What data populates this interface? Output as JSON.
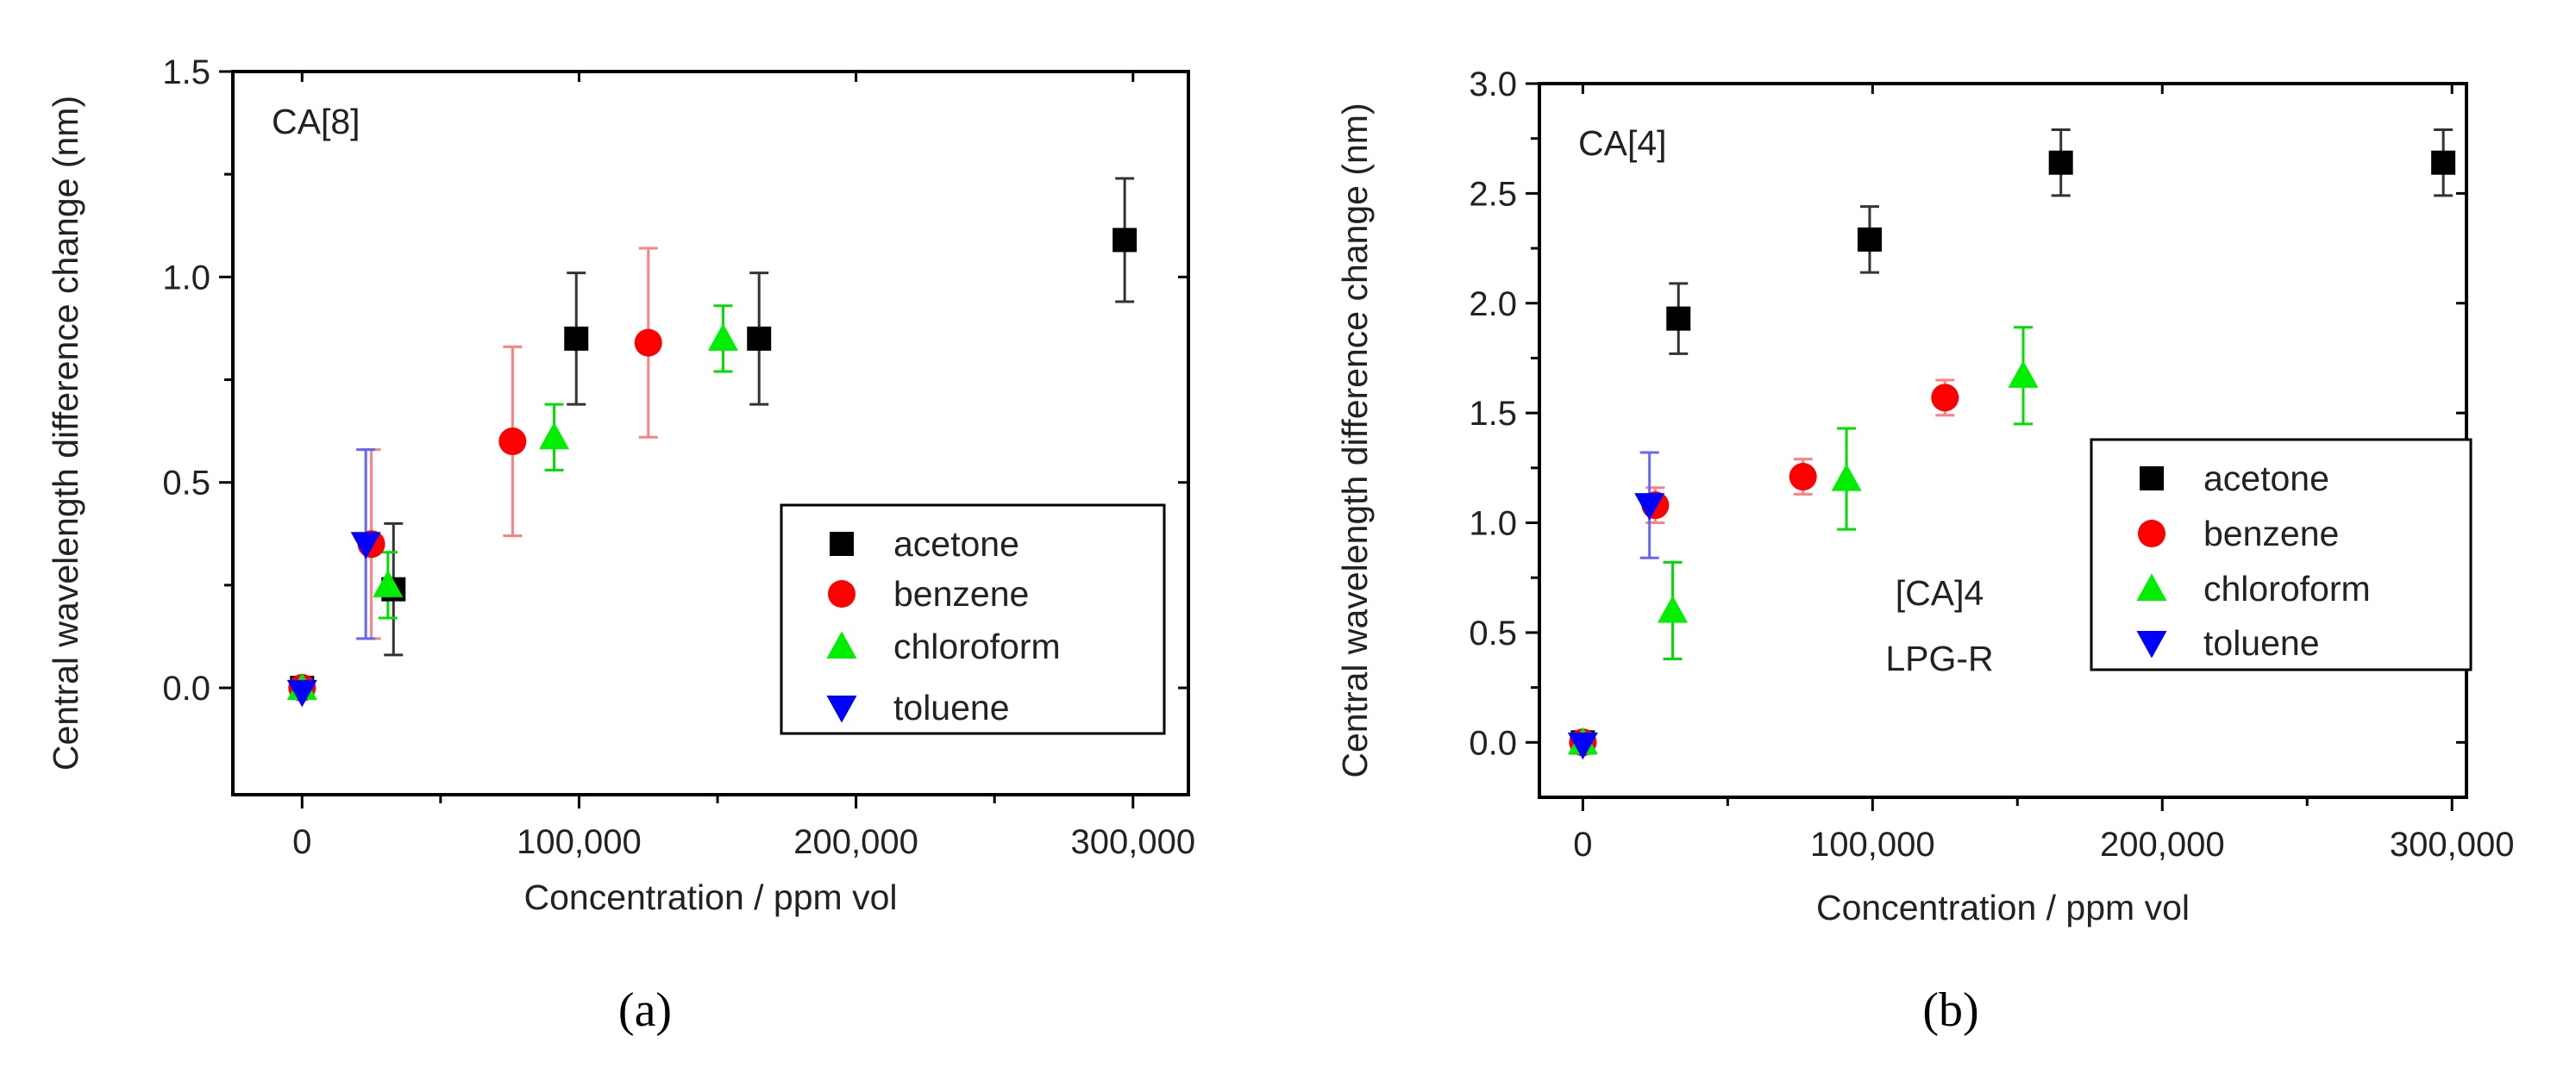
{
  "chart_data": [
    {
      "type": "scatter",
      "panel_label": "(a)",
      "annotation": "CA[8]",
      "xlabel": "Concentration / ppm vol",
      "ylabel": "Central wavelength difference change (nm)",
      "xlim": [
        -25000,
        320000
      ],
      "ylim": [
        -0.26,
        1.5
      ],
      "xticks": [
        0,
        100000,
        200000,
        300000
      ],
      "xtick_labels": [
        "0",
        "100,000",
        "200,000",
        "300,000"
      ],
      "yticks": [
        0.0,
        0.5,
        1.0,
        1.5
      ],
      "ytick_labels": [
        "0.0",
        "0.5",
        "1.0",
        "1.5"
      ],
      "grid": false,
      "legend_position": "lower-right",
      "series": [
        {
          "name": "acetone",
          "marker": "square",
          "color": "#000000",
          "x": [
            0,
            33000,
            99000,
            165000,
            297000
          ],
          "y": [
            0.0,
            0.24,
            0.85,
            0.85,
            1.09
          ],
          "err": [
            0.0,
            0.16,
            0.16,
            0.16,
            0.15
          ]
        },
        {
          "name": "benzene",
          "marker": "circle",
          "color": "#ff0000",
          "x": [
            0,
            25000,
            76000,
            125000
          ],
          "y": [
            0.0,
            0.35,
            0.6,
            0.84
          ],
          "err": [
            0.0,
            0.23,
            0.23,
            0.23
          ]
        },
        {
          "name": "chloroform",
          "marker": "triangle-up",
          "color": "#00ee00",
          "x": [
            0,
            31000,
            91000,
            152000
          ],
          "y": [
            0.0,
            0.25,
            0.61,
            0.85
          ],
          "err": [
            0.02,
            0.08,
            0.08,
            0.08
          ]
        },
        {
          "name": "toluene",
          "marker": "triangle-down",
          "color": "#0000ff",
          "x": [
            0,
            23000
          ],
          "y": [
            -0.01,
            0.35
          ],
          "err": [
            0.0,
            0.23
          ]
        }
      ]
    },
    {
      "type": "scatter",
      "panel_label": "(b)",
      "annotation": "CA[4]",
      "inner_annotation": [
        "[CA]4",
        "LPG-R"
      ],
      "xlabel": "Concentration / ppm vol",
      "ylabel": "Central wavelength difference change (nm)",
      "xlim": [
        -15000,
        305000
      ],
      "ylim": [
        -0.25,
        3.0
      ],
      "xticks": [
        0,
        100000,
        200000,
        300000
      ],
      "xtick_labels": [
        "0",
        "100,000",
        "200,000",
        "300,000"
      ],
      "yticks": [
        0.0,
        0.5,
        1.0,
        1.5,
        2.0,
        2.5,
        3.0
      ],
      "ytick_labels": [
        "0.0",
        "0.5",
        "1.0",
        "1.5",
        "2.0",
        "2.5",
        "3.0"
      ],
      "grid": false,
      "legend_position": "center-right",
      "series": [
        {
          "name": "acetone",
          "marker": "square",
          "color": "#000000",
          "x": [
            0,
            33000,
            99000,
            165000,
            297000
          ],
          "y": [
            0.0,
            1.93,
            2.29,
            2.64,
            2.64
          ],
          "err": [
            0.0,
            0.16,
            0.15,
            0.15,
            0.15
          ]
        },
        {
          "name": "benzene",
          "marker": "circle",
          "color": "#ff0000",
          "x": [
            0,
            25000,
            76000,
            125000
          ],
          "y": [
            0.0,
            1.08,
            1.21,
            1.57
          ],
          "err": [
            0.0,
            0.08,
            0.08,
            0.08
          ]
        },
        {
          "name": "chloroform",
          "marker": "triangle-up",
          "color": "#00ee00",
          "x": [
            0,
            31000,
            91000,
            152000
          ],
          "y": [
            0.0,
            0.6,
            1.2,
            1.67
          ],
          "err": [
            0.05,
            0.22,
            0.23,
            0.22
          ]
        },
        {
          "name": "toluene",
          "marker": "triangle-down",
          "color": "#0000ff",
          "x": [
            0,
            23000
          ],
          "y": [
            -0.01,
            1.08
          ],
          "err": [
            0.0,
            0.24
          ]
        }
      ]
    }
  ]
}
